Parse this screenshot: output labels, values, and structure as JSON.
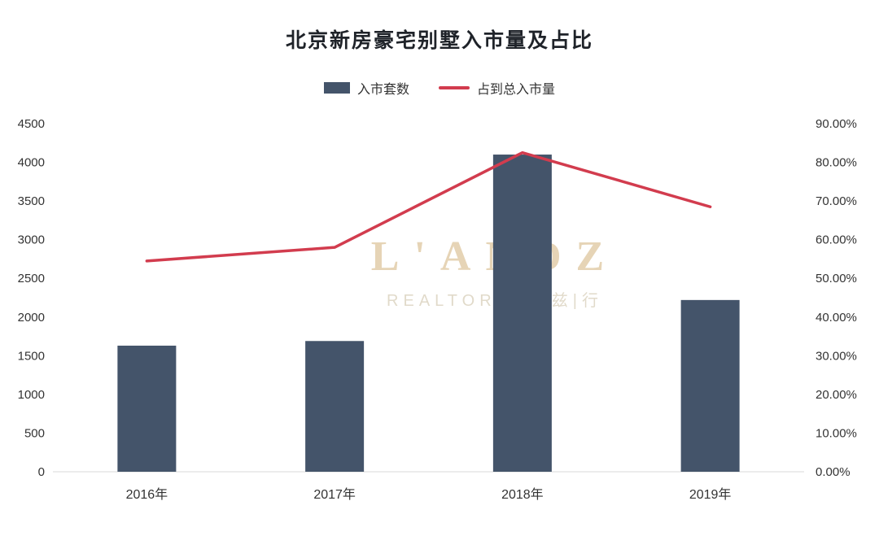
{
  "title": "北京新房豪宅别墅入市量及占比",
  "legend": [
    {
      "label": "入市套数",
      "type": "bar",
      "color": "#44546a"
    },
    {
      "label": "占到总入市量",
      "type": "line",
      "color": "#d23c4e"
    }
  ],
  "watermark": {
    "line1": "L'ANDZ",
    "line2": "REALTORS 丽|兹|行"
  },
  "chart_data": {
    "type": "bar",
    "combo": "bar+line",
    "title": "北京新房豪宅别墅入市量及占比",
    "categories": [
      "2016年",
      "2017年",
      "2018年",
      "2019年"
    ],
    "series": [
      {
        "name": "入市套数",
        "type": "bar",
        "axis": "left",
        "color": "#44546a",
        "values": [
          1630,
          1690,
          4100,
          2220
        ]
      },
      {
        "name": "占到总入市量",
        "type": "line",
        "axis": "right",
        "color": "#d23c4e",
        "values": [
          54.5,
          58.0,
          82.5,
          68.5
        ]
      }
    ],
    "left_axis": {
      "min": 0,
      "max": 4500,
      "step": 500,
      "tick_labels": [
        "0",
        "500",
        "1000",
        "1500",
        "2000",
        "2500",
        "3000",
        "3500",
        "4000",
        "4500"
      ]
    },
    "right_axis": {
      "min": 0,
      "max": 90,
      "step": 10,
      "tick_labels": [
        "0.00%",
        "10.00%",
        "20.00%",
        "30.00%",
        "40.00%",
        "50.00%",
        "60.00%",
        "70.00%",
        "80.00%",
        "90.00%"
      ]
    },
    "grid": false,
    "legend_position": "top"
  }
}
